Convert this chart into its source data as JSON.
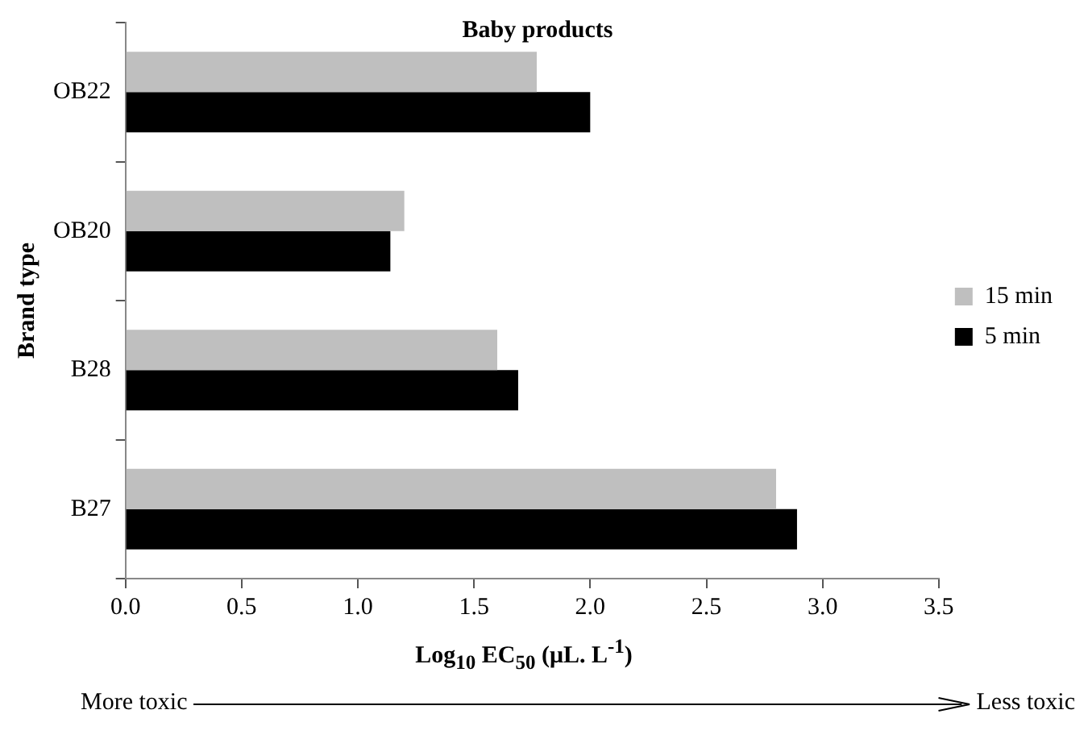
{
  "chart_data": {
    "type": "bar",
    "orientation": "horizontal",
    "title": "Baby products",
    "xlabel": "Log$_{10}$ EC$_{50}$ (μL. L$^{-1}$)",
    "ylabel": "Brand type",
    "categories": [
      "OB22",
      "OB20",
      "B28",
      "B27"
    ],
    "series": [
      {
        "name": "15 min",
        "color": "#bfbfbf",
        "values": [
          1.77,
          1.2,
          1.6,
          2.8
        ]
      },
      {
        "name": "5 min",
        "color": "#000000",
        "values": [
          2.0,
          1.14,
          1.69,
          2.89
        ]
      }
    ],
    "xlim": [
      0,
      3.5
    ],
    "xticks": [
      {
        "value": 0,
        "label": "0.0"
      },
      {
        "value": 0.5,
        "label": "0.5"
      },
      {
        "value": 1,
        "label": "1.0"
      },
      {
        "value": 1.5,
        "label": "1.5"
      },
      {
        "value": 2,
        "label": "2.0"
      },
      {
        "value": 2.5,
        "label": "2.5"
      },
      {
        "value": 3,
        "label": "3.0"
      },
      {
        "value": 3.5,
        "label": "3.5"
      }
    ],
    "grid": false,
    "legend": "right",
    "annotations": [
      "More toxic",
      "Less toxic"
    ]
  }
}
